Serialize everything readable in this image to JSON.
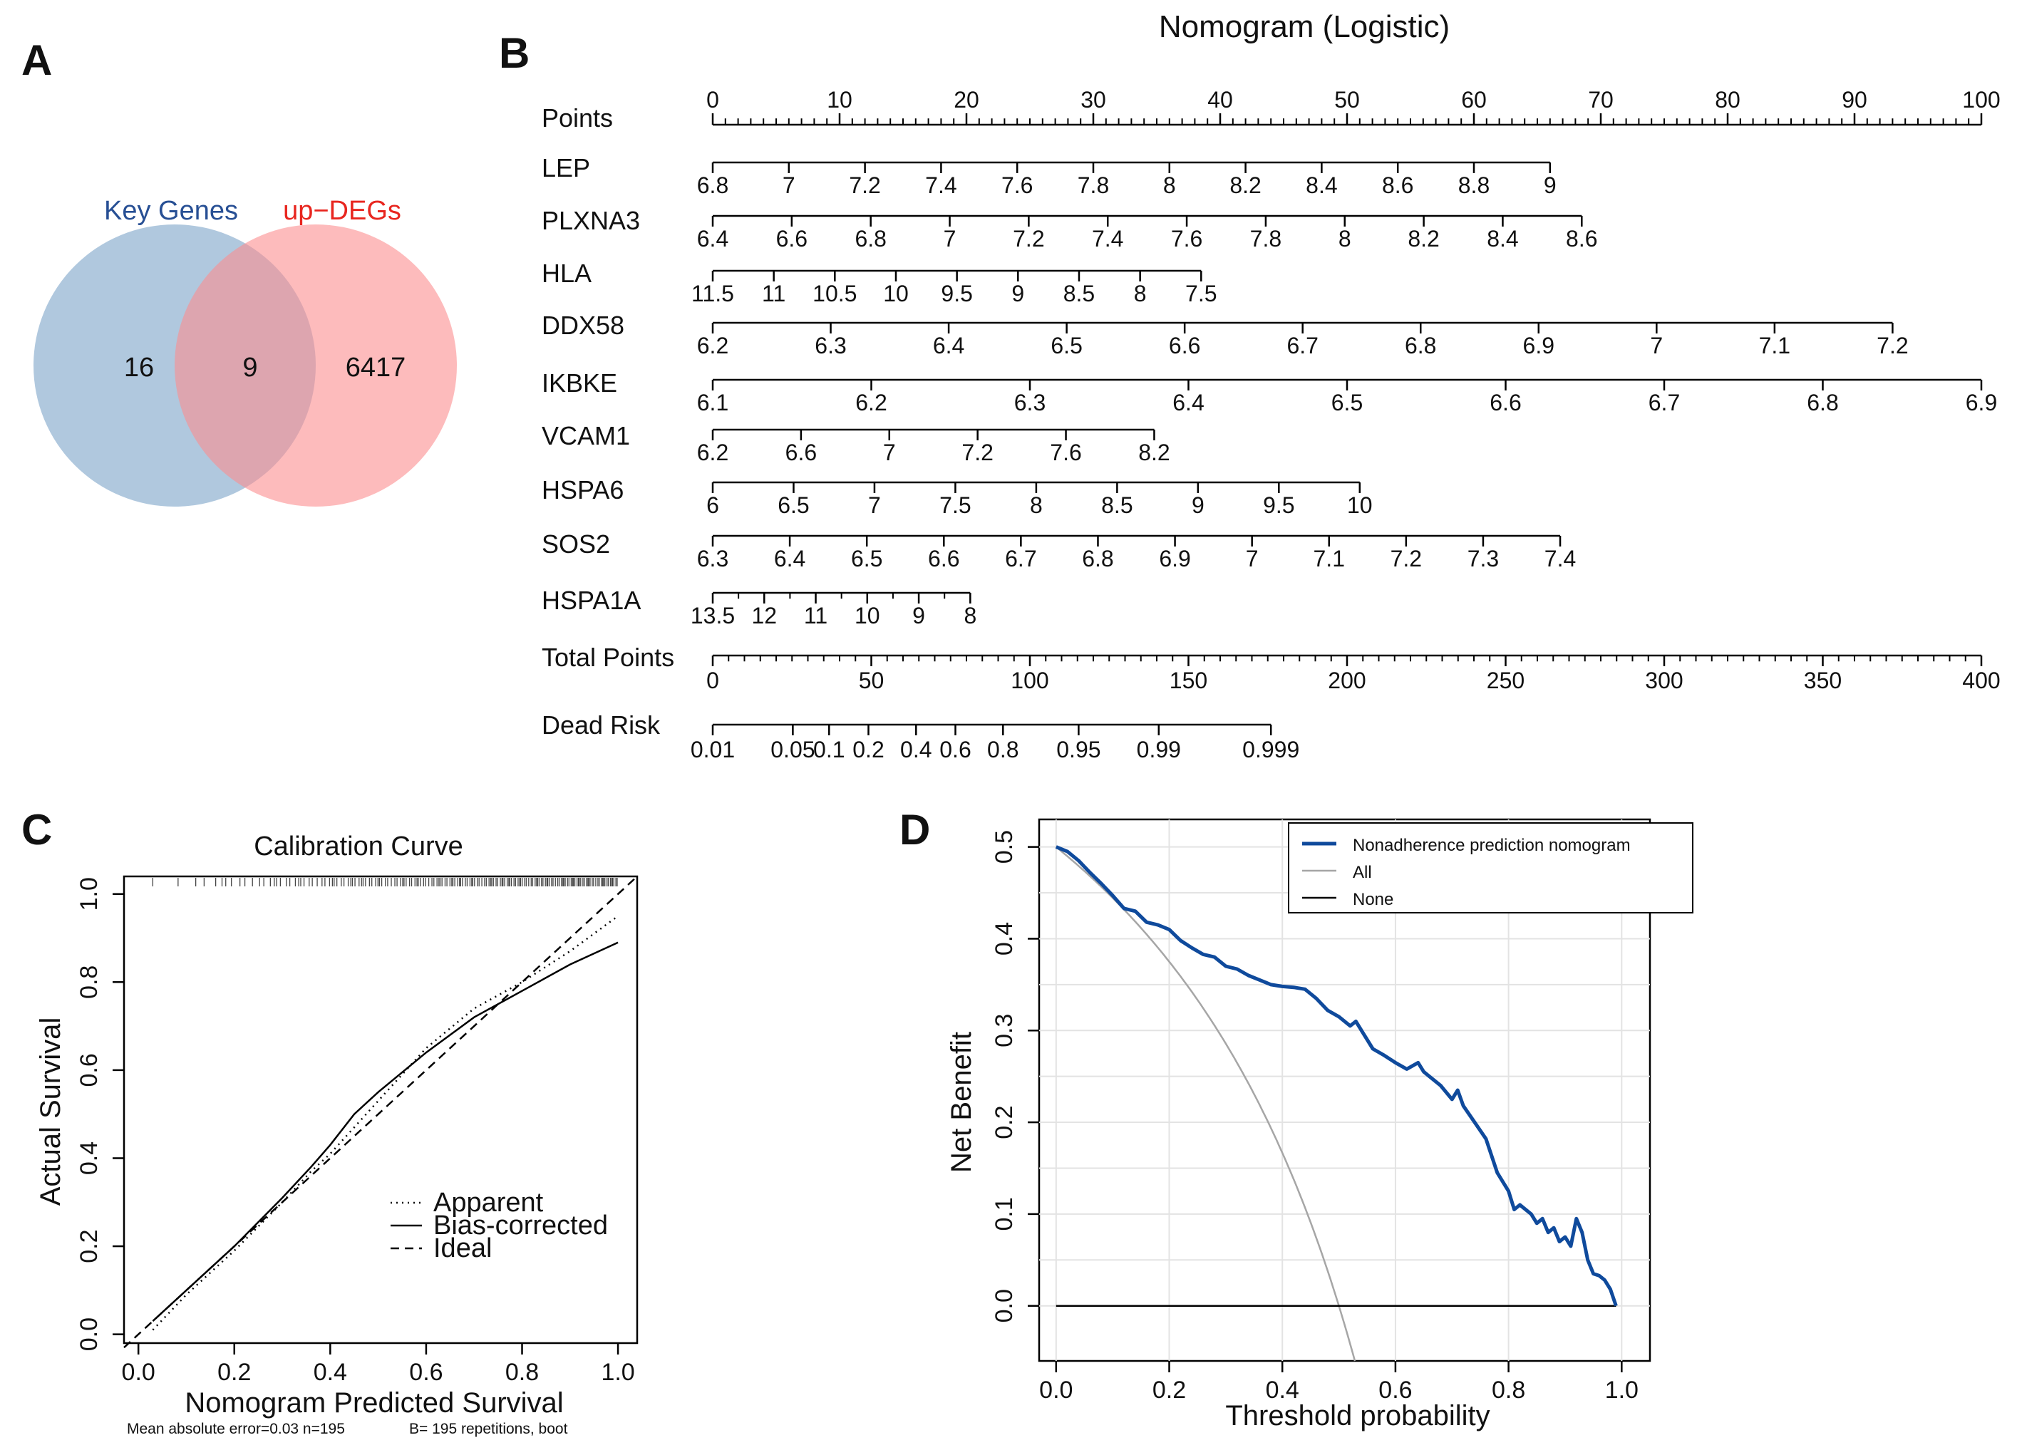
{
  "panel_labels": [
    "A",
    "B",
    "C",
    "D"
  ],
  "colors": {
    "venn_left": "#7ba3c8",
    "venn_right": "#fc8d8f",
    "key_genes_label": "#274f94",
    "up_degs_label": "#e8261f",
    "nomogram_curve": "#0f4a9c",
    "all_curve": "#a6a6a6",
    "grid": "#e3e3e3"
  },
  "chart_data": [
    {
      "type": "venn",
      "panel": "A",
      "sets": [
        {
          "name": "Key Genes",
          "only": "16"
        },
        {
          "name": "up−DEGs",
          "only": "6417"
        }
      ],
      "intersection": "9"
    },
    {
      "type": "nomogram",
      "panel": "B",
      "title": "Nomogram (Logistic)",
      "points_axis": {
        "label": "Points",
        "range": [
          0,
          100
        ],
        "major": [
          "0",
          "10",
          "20",
          "30",
          "40",
          "50",
          "60",
          "70",
          "80",
          "90",
          "100"
        ]
      },
      "variables": [
        {
          "name": "LEP",
          "span": [
            0,
            66
          ],
          "labels": [
            "6.8",
            "7",
            "7.2",
            "7.4",
            "7.6",
            "7.8",
            "8",
            "8.2",
            "8.4",
            "8.6",
            "8.8",
            "9"
          ]
        },
        {
          "name": "PLXNA3",
          "span": [
            0,
            68.5
          ],
          "labels": [
            "6.4",
            "6.6",
            "6.8",
            "7",
            "7.2",
            "7.4",
            "7.6",
            "7.8",
            "8",
            "8.2",
            "8.4",
            "8.6"
          ]
        },
        {
          "name": "HLA",
          "span": [
            0,
            38.5
          ],
          "labels": [
            "11.5",
            "11",
            "10.5",
            "10",
            "9.5",
            "9",
            "8.5",
            "8",
            "7.5"
          ]
        },
        {
          "name": "DDX58",
          "span": [
            0,
            93
          ],
          "labels": [
            "6.2",
            "6.3",
            "6.4",
            "6.5",
            "6.6",
            "6.7",
            "6.8",
            "6.9",
            "7",
            "7.1",
            "7.2"
          ]
        },
        {
          "name": "IKBKE",
          "span": [
            0,
            100
          ],
          "labels": [
            "6.1",
            "6.2",
            "6.3",
            "6.4",
            "6.5",
            "6.6",
            "6.7",
            "6.8",
            "6.9"
          ]
        },
        {
          "name": "VCAM1",
          "span": [
            0,
            34.8
          ],
          "labels": [
            "6.2",
            "6.6",
            "7",
            "7.2",
            "7.6",
            "8.2"
          ]
        },
        {
          "name": "HSPA6",
          "span": [
            0,
            51
          ],
          "labels": [
            "6",
            "6.5",
            "7",
            "7.5",
            "8",
            "8.5",
            "9",
            "9.5",
            "10"
          ]
        },
        {
          "name": "SOS2",
          "span": [
            0,
            66.8
          ],
          "labels": [
            "6.3",
            "6.4",
            "6.5",
            "6.6",
            "6.7",
            "6.8",
            "6.9",
            "7",
            "7.1",
            "7.2",
            "7.3",
            "7.4"
          ]
        },
        {
          "name": "HSPA1A",
          "span": [
            0,
            20.3
          ],
          "labels": [
            "13.5",
            "12",
            "11",
            "10",
            "9",
            "8"
          ]
        }
      ],
      "total_points_axis": {
        "label": "Total Points",
        "range": [
          0,
          400
        ],
        "major": [
          "0",
          "50",
          "100",
          "150",
          "200",
          "250",
          "300",
          "350",
          "400"
        ]
      },
      "risk_axis": {
        "label": "Dead Risk",
        "span_total_points": [
          0,
          176
        ],
        "labels": [
          "0.01",
          "0.05",
          "0.1",
          "0.2",
          "0.4",
          "0.6",
          "0.8",
          "0.95",
          "0.99",
          "0.999"
        ]
      }
    },
    {
      "type": "line",
      "panel": "C",
      "title": "Calibration Curve",
      "xlabel": "Nomogram Predicted Survival",
      "ylabel": "Actual Survival",
      "xlim": [
        -0.03,
        1.04
      ],
      "ylim": [
        -0.02,
        1.04
      ],
      "xticks": [
        "0.0",
        "0.2",
        "0.4",
        "0.6",
        "0.8",
        "1.0"
      ],
      "yticks": [
        "0.0",
        "0.2",
        "0.4",
        "0.6",
        "0.8",
        "1.0"
      ],
      "series": [
        {
          "name": "Apparent",
          "style": "dotted",
          "x": [
            0.03,
            0.1,
            0.2,
            0.3,
            0.36,
            0.4,
            0.5,
            0.6,
            0.7,
            0.8,
            0.9,
            1.0
          ],
          "y": [
            0.01,
            0.09,
            0.19,
            0.3,
            0.37,
            0.41,
            0.53,
            0.65,
            0.74,
            0.8,
            0.87,
            0.95
          ]
        },
        {
          "name": "Bias-corrected",
          "style": "solid",
          "x": [
            0.03,
            0.1,
            0.2,
            0.3,
            0.36,
            0.4,
            0.45,
            0.5,
            0.6,
            0.7,
            0.8,
            0.9,
            1.0
          ],
          "y": [
            0.03,
            0.1,
            0.2,
            0.31,
            0.38,
            0.43,
            0.5,
            0.55,
            0.64,
            0.72,
            0.78,
            0.84,
            0.89
          ]
        },
        {
          "name": "Ideal",
          "style": "dashed",
          "x": [
            -0.03,
            1.04
          ],
          "y": [
            -0.03,
            1.04
          ]
        }
      ],
      "legend": [
        "Apparent",
        "Bias-corrected",
        "Ideal"
      ],
      "footnote_left": "Mean absolute error=0.03 n=195",
      "footnote_right": "B= 195 repetitions, boot"
    },
    {
      "type": "line",
      "panel": "D",
      "xlabel": "Threshold probability",
      "ylabel": "Net Benefit",
      "xlim": [
        -0.03,
        1.05
      ],
      "ylim": [
        -0.06,
        0.53
      ],
      "xticks": [
        "0.0",
        "0.2",
        "0.4",
        "0.6",
        "0.8",
        "1.0"
      ],
      "yticks": [
        "0.0",
        "0.1",
        "0.2",
        "0.3",
        "0.4",
        "0.5"
      ],
      "series": [
        {
          "name": "Nonadherence prediction nomogram",
          "x": [
            0.0,
            0.02,
            0.04,
            0.06,
            0.08,
            0.1,
            0.12,
            0.14,
            0.16,
            0.18,
            0.2,
            0.22,
            0.24,
            0.26,
            0.28,
            0.3,
            0.32,
            0.34,
            0.36,
            0.38,
            0.4,
            0.42,
            0.44,
            0.46,
            0.48,
            0.5,
            0.52,
            0.53,
            0.54,
            0.56,
            0.58,
            0.6,
            0.62,
            0.64,
            0.65,
            0.66,
            0.68,
            0.7,
            0.71,
            0.72,
            0.74,
            0.76,
            0.78,
            0.8,
            0.81,
            0.82,
            0.84,
            0.85,
            0.86,
            0.87,
            0.88,
            0.89,
            0.9,
            0.91,
            0.92,
            0.93,
            0.94,
            0.95,
            0.96,
            0.97,
            0.98,
            0.99
          ],
          "y": [
            0.5,
            0.495,
            0.485,
            0.472,
            0.46,
            0.447,
            0.433,
            0.43,
            0.418,
            0.415,
            0.41,
            0.398,
            0.39,
            0.383,
            0.38,
            0.37,
            0.367,
            0.36,
            0.355,
            0.35,
            0.348,
            0.347,
            0.345,
            0.335,
            0.322,
            0.315,
            0.305,
            0.31,
            0.3,
            0.28,
            0.273,
            0.265,
            0.258,
            0.265,
            0.255,
            0.25,
            0.24,
            0.225,
            0.235,
            0.218,
            0.2,
            0.182,
            0.145,
            0.125,
            0.105,
            0.11,
            0.1,
            0.09,
            0.095,
            0.08,
            0.085,
            0.07,
            0.075,
            0.065,
            0.095,
            0.08,
            0.05,
            0.035,
            0.033,
            0.028,
            0.018,
            0.0
          ]
        },
        {
          "name": "All",
          "formula": "0.5 - 0.5*pt/(1-pt)"
        },
        {
          "name": "None",
          "y_const": 0.0
        }
      ],
      "legend": [
        "Nonadherence prediction nomogram",
        "All",
        "None"
      ]
    }
  ]
}
